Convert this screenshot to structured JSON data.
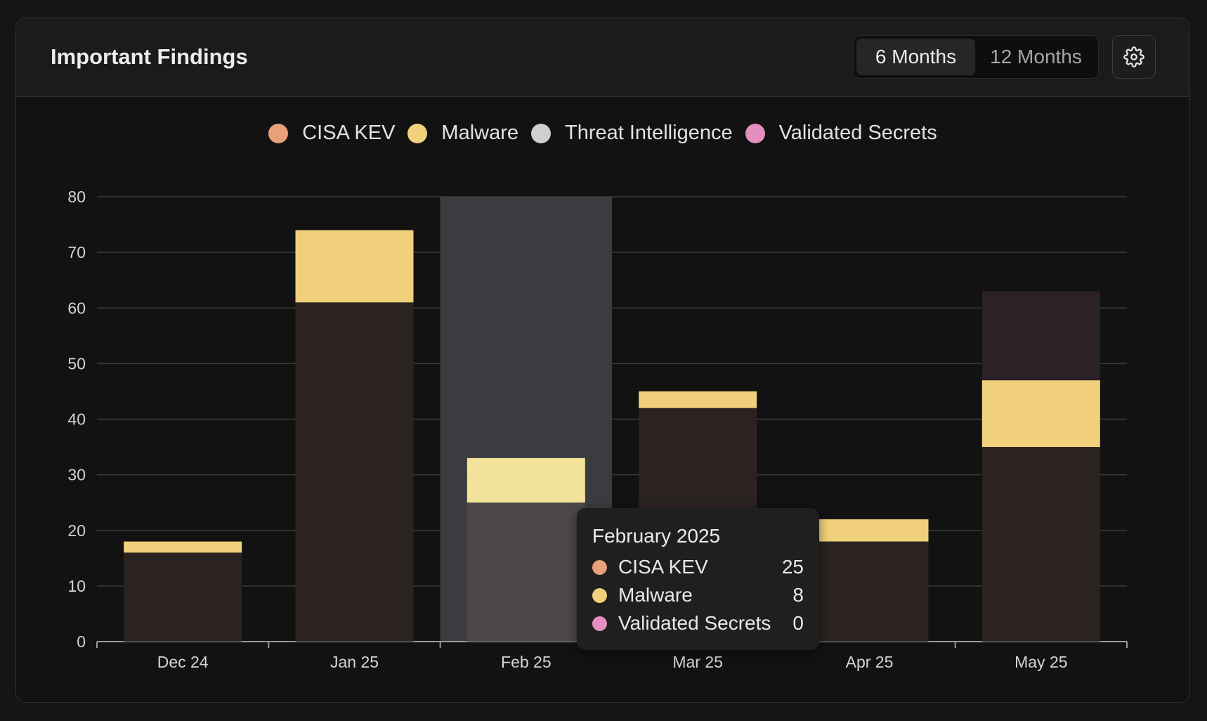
{
  "header": {
    "title": "Important Findings",
    "range_options": [
      "6 Months",
      "12 Months"
    ],
    "active_range": "6 Months",
    "settings_icon": "gear-icon"
  },
  "legend": [
    {
      "name": "CISA KEV",
      "color": "#e8a07a"
    },
    {
      "name": "Malware",
      "color": "#f0d07a"
    },
    {
      "name": "Threat Intelligence",
      "color": "#cfcfcf"
    },
    {
      "name": "Validated Secrets",
      "color": "#e48fbf"
    }
  ],
  "chart_data": {
    "type": "bar",
    "stacked": true,
    "title": "Important Findings",
    "xlabel": "",
    "ylabel": "",
    "ylim": [
      0,
      80
    ],
    "yticks": [
      0,
      10,
      20,
      30,
      40,
      50,
      60,
      70,
      80
    ],
    "grid": true,
    "legend_position": "top-center",
    "categories": [
      "Dec 24",
      "Jan 25",
      "Feb 25",
      "Mar 25",
      "Apr 25",
      "May 25"
    ],
    "highlighted_category": "Feb 25",
    "series": [
      {
        "name": "CISA KEV",
        "color": "#e8a07a",
        "values": [
          16,
          61,
          25,
          42,
          18,
          35
        ]
      },
      {
        "name": "Malware",
        "color": "#f0d07a",
        "values": [
          2,
          13,
          8,
          3,
          4,
          12
        ]
      },
      {
        "name": "Threat Intelligence",
        "color": "#cfcfcf",
        "values": [
          0,
          0,
          0,
          0,
          0,
          0
        ]
      },
      {
        "name": "Validated Secrets",
        "color": "#e48fbf",
        "values": [
          0,
          0,
          0,
          0,
          0,
          16
        ]
      }
    ]
  },
  "tooltip": {
    "title": "February 2025",
    "rows": [
      {
        "name": "CISA KEV",
        "value": "25",
        "color": "#e8a07a"
      },
      {
        "name": "Malware",
        "value": "8",
        "color": "#f0d07a"
      },
      {
        "name": "Validated Secrets",
        "value": "0",
        "color": "#e48fbf"
      }
    ]
  }
}
